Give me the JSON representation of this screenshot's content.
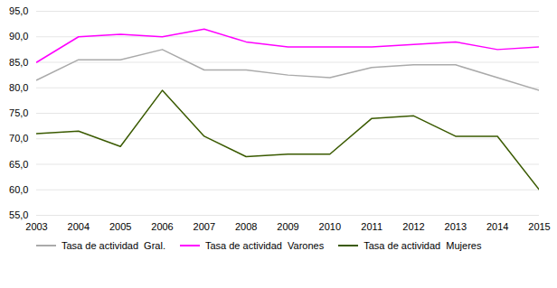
{
  "chart_data": {
    "type": "line",
    "x": [
      2003,
      2004,
      2005,
      2006,
      2007,
      2008,
      2009,
      2010,
      2011,
      2012,
      2013,
      2014,
      2015
    ],
    "series": [
      {
        "name": "Tasa de actividad  Gral.",
        "color": "#aaaaaa",
        "values": [
          81.5,
          85.5,
          85.5,
          87.5,
          83.5,
          83.5,
          82.5,
          82.0,
          84.0,
          84.5,
          84.5,
          82.0,
          79.5
        ]
      },
      {
        "name": "Tasa de actividad  Varones",
        "color": "#ff00ff",
        "values": [
          85.0,
          90.0,
          90.5,
          90.0,
          91.5,
          89.0,
          88.0,
          88.0,
          88.0,
          88.5,
          89.0,
          87.5,
          88.0
        ]
      },
      {
        "name": "Tasa de actividad  Mujeres",
        "color": "#3a5a00",
        "values": [
          71.0,
          71.5,
          68.5,
          79.5,
          70.5,
          66.5,
          67.0,
          67.0,
          74.0,
          74.5,
          70.5,
          70.5,
          60.0
        ]
      }
    ],
    "xlim": [
      2003,
      2015
    ],
    "xticks": [
      2003,
      2004,
      2005,
      2006,
      2007,
      2008,
      2009,
      2010,
      2011,
      2012,
      2013,
      2014,
      2015
    ],
    "ylim": [
      55,
      95
    ],
    "yticks": [
      {
        "value": 55,
        "label": "55,0"
      },
      {
        "value": 60,
        "label": "60,0"
      },
      {
        "value": 65,
        "label": "65,0"
      },
      {
        "value": 70,
        "label": "70,0"
      },
      {
        "value": 75,
        "label": "75,0"
      },
      {
        "value": 80,
        "label": "80,0"
      },
      {
        "value": 85,
        "label": "85,0"
      },
      {
        "value": 90,
        "label": "90,0"
      },
      {
        "value": 95,
        "label": "95,0"
      }
    ],
    "grid": true,
    "legend": "bottom"
  }
}
